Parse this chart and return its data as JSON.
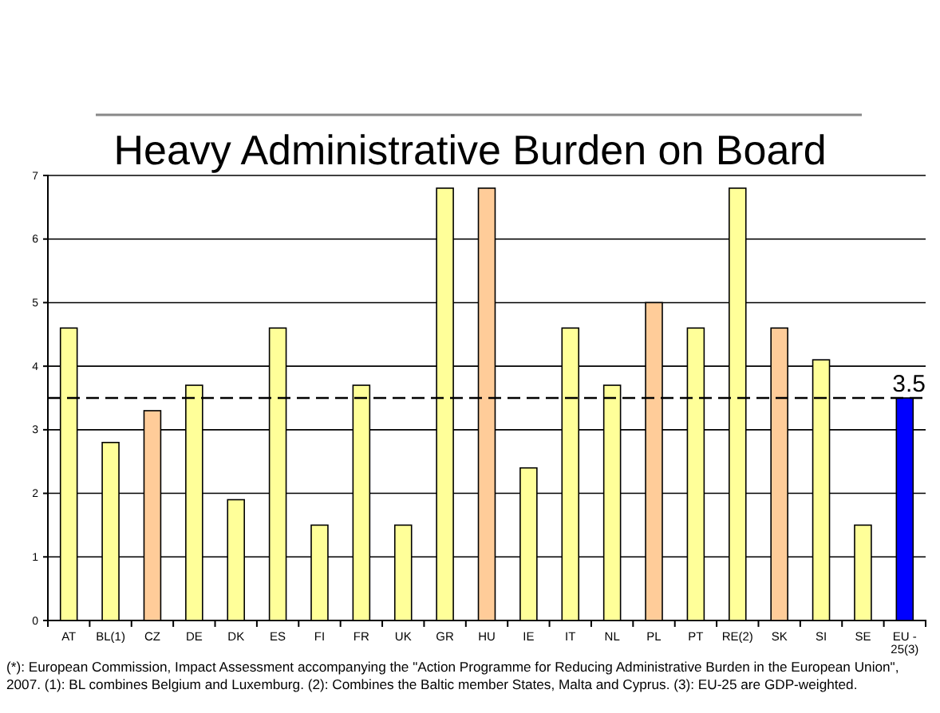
{
  "chart_data": {
    "type": "bar",
    "title": "Heavy Administrative Burden on Board",
    "categories": [
      "AT",
      "BL(1)",
      "CZ",
      "DE",
      "DK",
      "ES",
      "FI",
      "FR",
      "UK",
      "GR",
      "HU",
      "IE",
      "IT",
      "NL",
      "PL",
      "PT",
      "RE(2)",
      "SK",
      "SI",
      "SE",
      "EU - 25(3)"
    ],
    "values": [
      4.6,
      2.8,
      3.3,
      3.7,
      1.9,
      4.6,
      1.5,
      3.7,
      1.5,
      6.8,
      6.8,
      2.4,
      4.6,
      3.7,
      5.0,
      4.6,
      6.8,
      4.6,
      4.1,
      1.5,
      3.5
    ],
    "colors": [
      "#ffff99",
      "#ffff99",
      "#ffcc99",
      "#ffff99",
      "#ffff99",
      "#ffff99",
      "#ffff99",
      "#ffff99",
      "#ffff99",
      "#ffff99",
      "#ffcc99",
      "#ffff99",
      "#ffff99",
      "#ffff99",
      "#ffcc99",
      "#ffff99",
      "#ffff99",
      "#ffcc99",
      "#ffff99",
      "#ffff99",
      "#0000ff"
    ],
    "ylim": [
      0,
      7
    ],
    "yticks": [
      0,
      1,
      2,
      3,
      4,
      5,
      6,
      7
    ],
    "grid": "y",
    "ref_lines": [
      {
        "axis": "y",
        "value": 3.5,
        "label": "3.5",
        "color": "#000000",
        "line_style": "dashed"
      }
    ],
    "annotations": [
      "(*): European Commission, Impact Assessment accompanying the \"Action Programme for Reducing Administrative Burden in the European Union\", 2007. (1): BL combines Belgium and Luxemburg. (2): Combines the Baltic member States, Malta and Cyprus. (3): EU-25 are GDP-weighted."
    ]
  }
}
